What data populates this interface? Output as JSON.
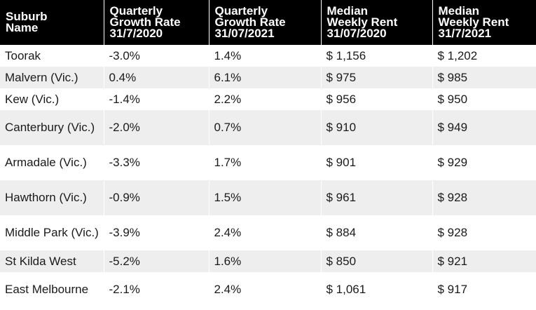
{
  "table": {
    "headers": [
      [
        "Suburb",
        "Name"
      ],
      [
        "Quarterly",
        "Growth Rate",
        "31/7/2020"
      ],
      [
        "Quarterly",
        "Growth Rate",
        "31/07/2021"
      ],
      [
        "Median",
        "Weekly Rent",
        "31/07/2020"
      ],
      [
        "Median",
        "Weekly Rent",
        "31/7/2021"
      ]
    ],
    "rows": [
      [
        "Toorak",
        "-3.0%",
        "1.4%",
        "$ 1,156",
        "$ 1,202"
      ],
      [
        "Malvern (Vic.)",
        "0.4%",
        "6.1%",
        "$ 975",
        "$ 985"
      ],
      [
        "Kew (Vic.)",
        "-1.4%",
        "2.2%",
        "$ 956",
        "$ 950"
      ],
      [
        "Canterbury (Vic.)",
        "-2.0%",
        "0.7%",
        "$ 910",
        "$ 949"
      ],
      [
        "Armadale (Vic.)",
        "-3.3%",
        "1.7%",
        "$ 901",
        "$ 929"
      ],
      [
        "Hawthorn (Vic.)",
        "-0.9%",
        "1.5%",
        "$ 961",
        "$ 928"
      ],
      [
        "Middle Park (Vic.)",
        "-3.9%",
        "2.4%",
        "$ 884",
        "$ 928"
      ],
      [
        "St Kilda West",
        "-5.2%",
        "1.6%",
        "$ 850",
        "$ 921"
      ],
      [
        "East Melbourne",
        "-2.1%",
        "2.4%",
        "$ 1,061",
        "$ 917"
      ]
    ]
  }
}
